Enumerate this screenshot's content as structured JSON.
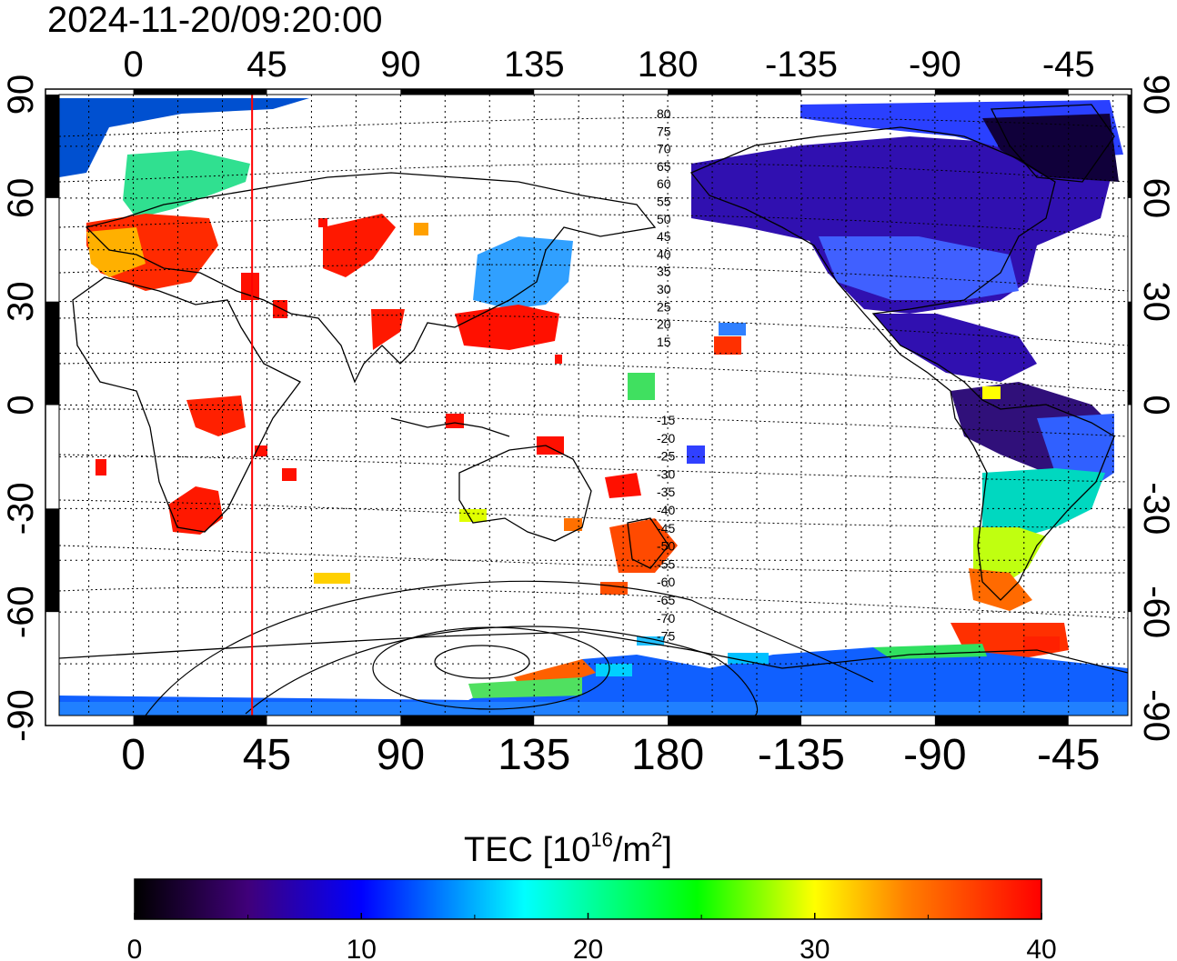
{
  "title": "2024-11-20/09:20:00",
  "map": {
    "top_axis_labels": [
      "0",
      "45",
      "90",
      "135",
      "180",
      "-135",
      "-90",
      "-45"
    ],
    "bottom_axis_labels": [
      "0",
      "45",
      "90",
      "135",
      "180",
      "-135",
      "-90",
      "-45"
    ],
    "left_axis_labels": [
      "90",
      "60",
      "30",
      "0",
      "-30",
      "-60",
      "-90"
    ],
    "right_axis_labels": [
      "90",
      "60",
      "30",
      "0",
      "-30",
      "-60",
      "-90"
    ],
    "lon_ticks": [
      0,
      45,
      90,
      135,
      180,
      -135,
      -90,
      -45
    ],
    "lat_ticks": [
      90,
      60,
      30,
      0,
      -30,
      -60,
      -90
    ],
    "lon_range": [
      -25,
      335
    ],
    "lat_range": [
      -90,
      90
    ],
    "grid": true,
    "reference_meridian_lon": 40,
    "reference_meridian_color": "#ff0000",
    "contour_labels_north": [
      "80",
      "75",
      "70",
      "65",
      "60",
      "55",
      "50",
      "45",
      "40",
      "35",
      "30",
      "25",
      "20",
      "15"
    ],
    "contour_labels_south": [
      "-15",
      "-20",
      "-25",
      "-30",
      "-35",
      "-40",
      "-45",
      "-50",
      "-55",
      "-60",
      "-65",
      "-70",
      "-75"
    ]
  },
  "colorbar": {
    "label_main": "TEC  [10",
    "label_sup1": "16",
    "label_mid": "/m",
    "label_sup2": "2",
    "label_end": "]",
    "tick_labels": [
      "0",
      "10",
      "20",
      "30",
      "40"
    ],
    "range": [
      0,
      40
    ],
    "colors": [
      "#000000",
      "#40007a",
      "#0000ff",
      "#00ffff",
      "#00ff00",
      "#ffff00",
      "#ff8000",
      "#ff0000"
    ]
  }
}
